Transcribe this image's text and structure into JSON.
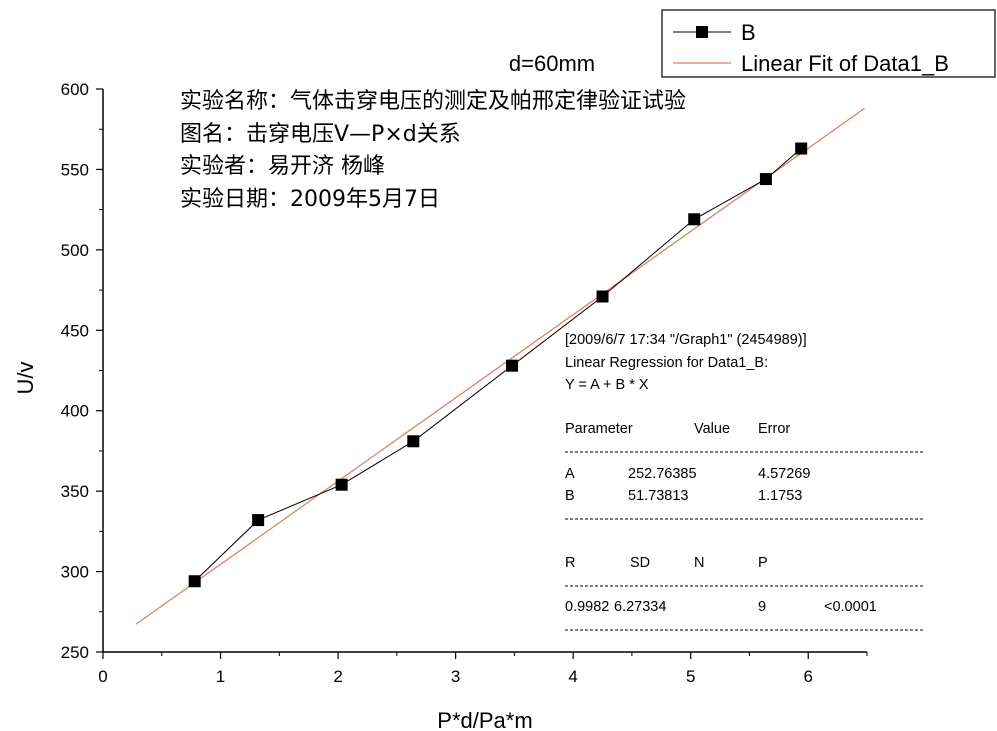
{
  "chart_data": {
    "type": "scatter",
    "title": "d=60mm",
    "xlabel": "P*d/Pa*m",
    "ylabel": "U/v",
    "xlim": [
      0,
      6.5
    ],
    "ylim": [
      250,
      600
    ],
    "xticks": [
      "0",
      "1",
      "2",
      "3",
      "4",
      "5",
      "6"
    ],
    "yticks": [
      "250",
      "300",
      "350",
      "400",
      "450",
      "500",
      "550",
      "600"
    ],
    "series": [
      {
        "name": "B",
        "style": "line-and-square-markers",
        "color": "#000000",
        "x": [
          0.78,
          1.32,
          2.03,
          2.64,
          3.48,
          4.25,
          5.03,
          5.64,
          5.94
        ],
        "y": [
          294,
          332,
          354,
          381,
          428,
          471,
          519,
          544,
          563
        ]
      },
      {
        "name": "Linear Fit of Data1_B",
        "style": "line",
        "color": "#d9826f",
        "intercept": 252.76385,
        "slope": 51.73813,
        "xrange": [
          0.28,
          6.48
        ]
      }
    ],
    "legend_position": "top-right",
    "annotations": [
      "实验名称：气体击穿电压的测定及帕邢定律验证试验",
      "图名：击穿电压V—P×d关系",
      "实验者：易开济 杨峰",
      "实验日期：2009年5月7日"
    ],
    "regression_box": {
      "header": "[2009/6/7 17:34 \"/Graph1\" (2454989)]",
      "title": "Linear Regression for Data1_B:",
      "equation": "Y = A + B * X",
      "param_headers": [
        "Parameter",
        "Value",
        "Error"
      ],
      "params": [
        [
          "A",
          "252.76385",
          "4.57269"
        ],
        [
          "B",
          "51.73813",
          "1.1753"
        ]
      ],
      "stat_headers": [
        "R",
        "SD",
        "N",
        "P"
      ],
      "stats": [
        "0.9982",
        "6.27334",
        "9",
        "<0.0001"
      ]
    }
  }
}
